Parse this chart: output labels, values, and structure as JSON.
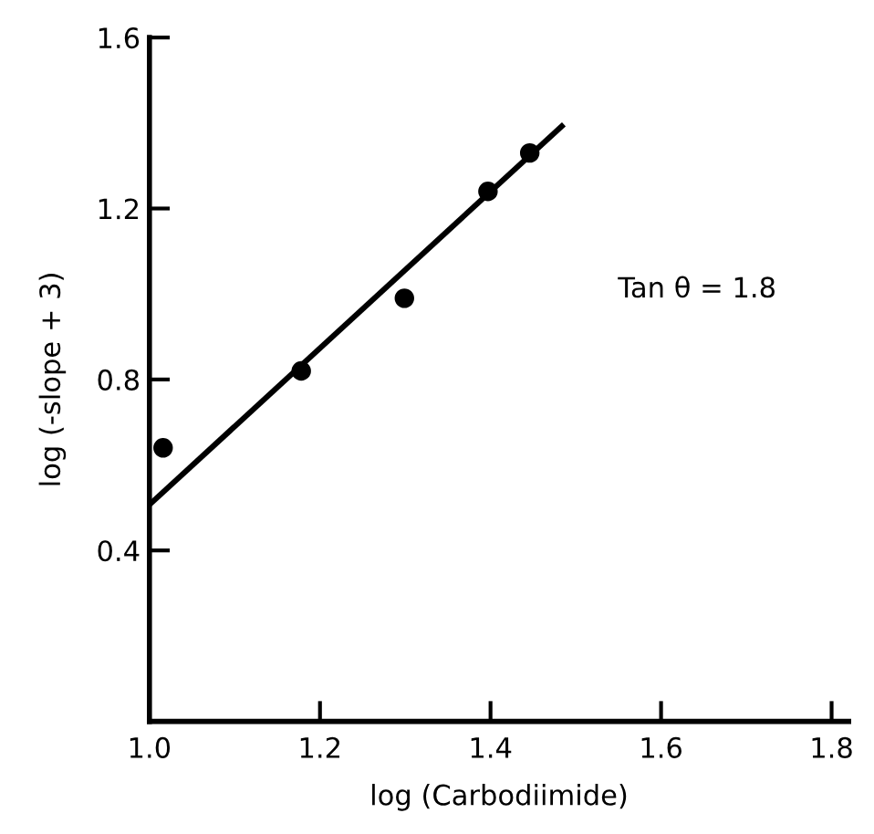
{
  "chart_data": {
    "type": "scatter",
    "xlabel": "log (Carbodiimide)",
    "ylabel": "log (-slope + 3)",
    "annotations": [
      "Tan θ = 1.8"
    ],
    "series": [
      {
        "color": "#000000",
        "marker": "circle",
        "x": [
          1.016,
          1.178,
          1.299,
          1.397,
          1.446
        ],
        "values": [
          0.64,
          0.82,
          0.99,
          1.24,
          1.33
        ]
      },
      {
        "type": "line",
        "color": "#000000",
        "marker": "none",
        "line_style": "solid",
        "x": [
          1.0,
          1.486
        ],
        "values": [
          0.507,
          1.397
        ]
      }
    ],
    "xlim": [
      1.0,
      1.82
    ],
    "ylim": [
      0,
      1.6
    ],
    "xticks": [
      {
        "value": 1.0,
        "label": "1.0"
      },
      1.2,
      1.4,
      1.6,
      1.8
    ],
    "yticks": [
      0.4,
      0.8,
      1.2,
      1.6
    ],
    "grid": false,
    "legend": false
  }
}
